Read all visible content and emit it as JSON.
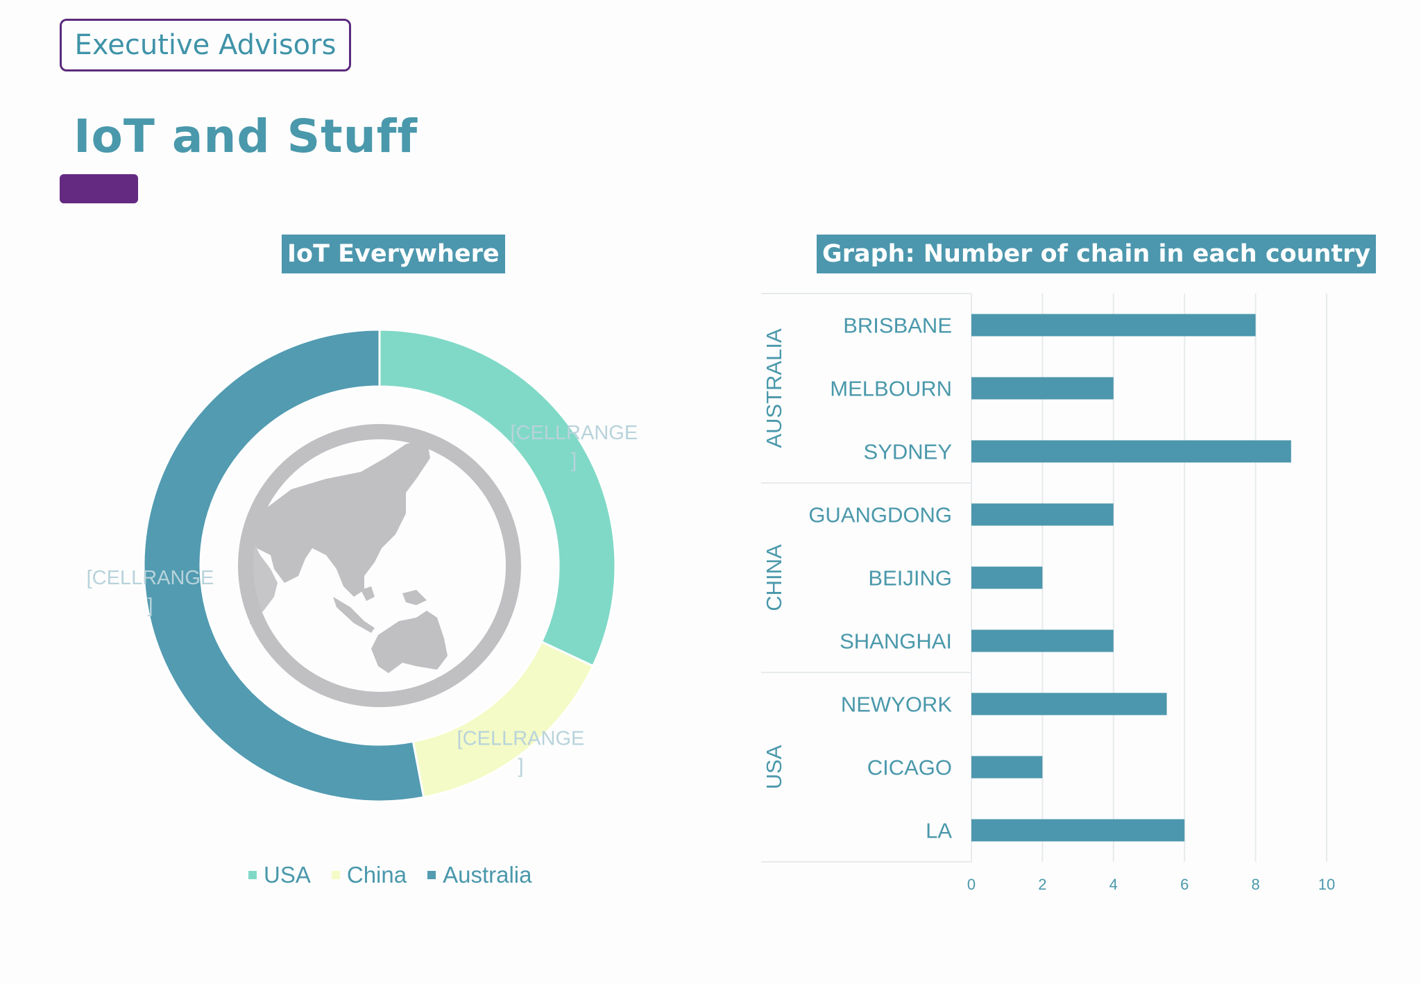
{
  "header": {
    "brand": "Executive Advisors",
    "title": "IoT and Stuff"
  },
  "colors": {
    "accent": "#642a81",
    "teal": "#4c97ad",
    "usa": "#80d9c7",
    "china": "#f4fbc6",
    "australia": "#529bb1",
    "globe": "#c0bfc2"
  },
  "icons": {
    "globe": "globe-icon"
  },
  "chart_data": [
    {
      "type": "pie",
      "title": "IoT Everywhere",
      "donut": true,
      "slices": [
        {
          "name": "USA",
          "value": 32,
          "label": "[CELLRANGE]",
          "color": "#80d9c7"
        },
        {
          "name": "China",
          "value": 15,
          "label": "[CELLRANGE]",
          "color": "#f4fbc6"
        },
        {
          "name": "Australia",
          "value": 53,
          "label": "[CELLRANGE]",
          "color": "#529bb1"
        }
      ],
      "legend": [
        "USA",
        "China",
        "Australia"
      ],
      "legend_position": "bottom"
    },
    {
      "type": "bar",
      "orientation": "horizontal",
      "title": "Graph: Number of chain in each country",
      "groups": [
        {
          "name": "AUSTRALIA",
          "categories": [
            "BRISBANE",
            "MELBOURN",
            "SYDNEY"
          ],
          "values": [
            8,
            4,
            9
          ]
        },
        {
          "name": "CHINA",
          "categories": [
            "GUANGDONG",
            "BEIJING",
            "SHANGHAI"
          ],
          "values": [
            4,
            2,
            4
          ]
        },
        {
          "name": "USA",
          "categories": [
            "NEWYORK",
            "CICAGO",
            "LA"
          ],
          "values": [
            5.5,
            2,
            6
          ]
        }
      ],
      "xlim": [
        0,
        10
      ],
      "xticks": [
        "0",
        "2",
        "4",
        "6",
        "8",
        "10"
      ],
      "grid": true,
      "bar_color": "#4c97ad"
    }
  ]
}
